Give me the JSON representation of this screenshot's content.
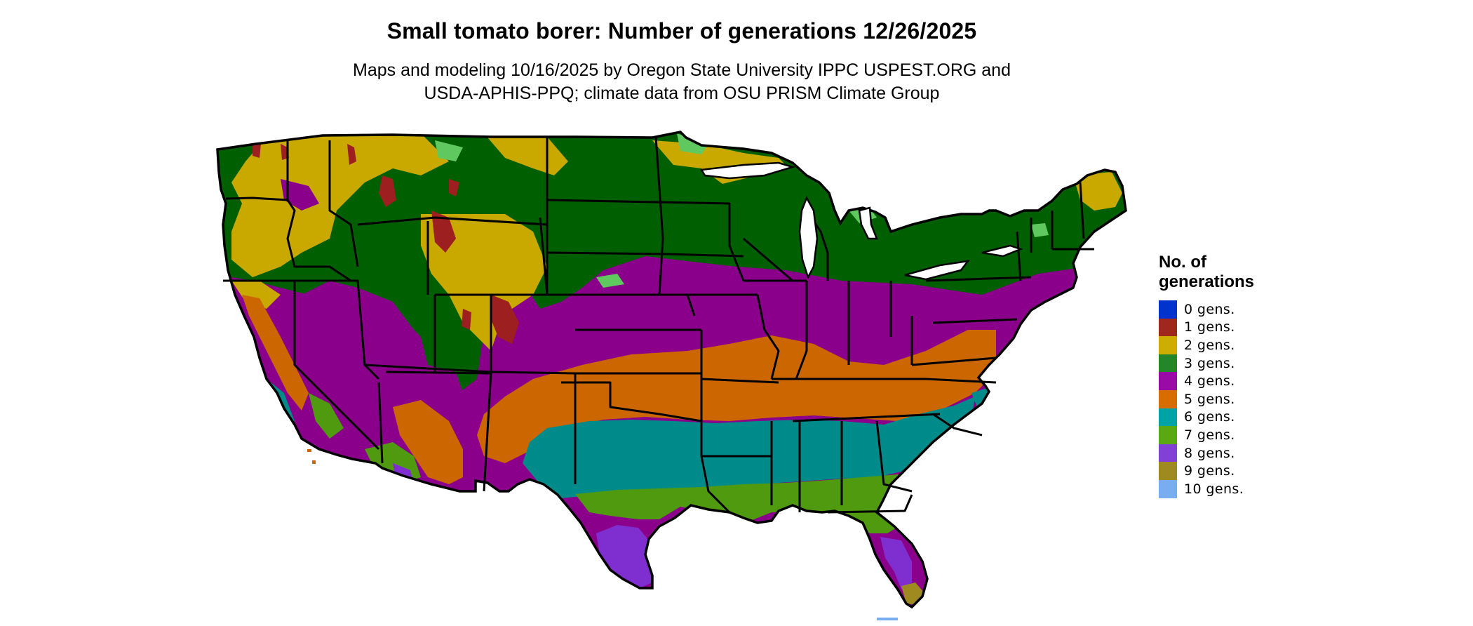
{
  "title": "Small tomato borer: Number of generations 12/26/2025",
  "subtitle": {
    "line1": "Maps and modeling 10/16/2025 by Oregon State University IPPC USPEST.ORG and",
    "line2": "USDA-APHIS-PPQ; climate data from OSU PRISM Climate Group"
  },
  "legend": {
    "title_line1": "No. of",
    "title_line2": "generations",
    "items": [
      {
        "label": "0 gens.",
        "color": "#0033cc"
      },
      {
        "label": "1 gens.",
        "color": "#a0271d"
      },
      {
        "label": "2 gens.",
        "color": "#ccad00"
      },
      {
        "label": "3 gens.",
        "color": "#23872a"
      },
      {
        "label": "4 gens.",
        "color": "#9a0aa6"
      },
      {
        "label": "5 gens.",
        "color": "#d76c00"
      },
      {
        "label": "6 gens.",
        "color": "#00a3a3"
      },
      {
        "label": "7 gens.",
        "color": "#5aa812"
      },
      {
        "label": "8 gens.",
        "color": "#8340d6"
      },
      {
        "label": "9 gens.",
        "color": "#9f8a1f"
      },
      {
        "label": "10 gens.",
        "color": "#78aeef"
      }
    ]
  },
  "map_colors": {
    "dark_green": "#005f00",
    "light_green": "#5fc95f",
    "purple": "#8a008a",
    "orange": "#cc6600",
    "teal": "#008b8b",
    "olive_green": "#4f9a0f",
    "violet": "#7f2fd0",
    "gold": "#c9a800",
    "brown": "#9e1f1f",
    "border": "#000000"
  }
}
